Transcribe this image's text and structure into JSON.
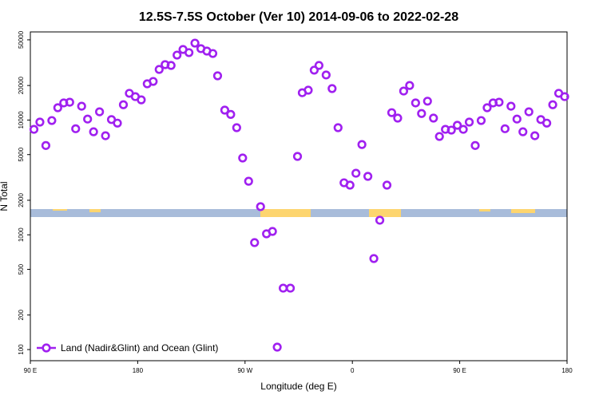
{
  "chart_data": {
    "type": "scatter",
    "title": "12.5S-7.5S October (Ver 10)   2014-09-06 to 2022-02-28",
    "xlabel": "Longitude (deg E)",
    "ylabel": "N Total",
    "ylog": true,
    "legend": "lower left",
    "xlim": [
      90,
      540
    ],
    "ylim": [
      80,
      58600
    ],
    "xticks": [
      {
        "value": 90,
        "label": "90 E"
      },
      180,
      {
        "value": 270,
        "label": "90 W"
      },
      {
        "value": 360,
        "label": "0"
      },
      {
        "value": 450,
        "label": "90 E"
      },
      {
        "value": 540,
        "label": "180"
      }
    ],
    "yticks": [
      100,
      200,
      500,
      1000,
      2000,
      5000,
      10000,
      20000,
      50000
    ],
    "series": [
      {
        "name": "Land (Nadir&Glint) and Ocean (Glint)",
        "color": "#a020f0",
        "x": [
          93,
          98,
          103,
          108,
          113,
          118,
          123,
          128,
          133,
          138,
          143,
          148,
          153,
          158,
          163,
          168,
          173,
          178,
          183,
          188,
          193,
          198,
          203,
          208,
          213,
          218,
          223,
          228,
          233,
          238,
          243,
          247,
          253,
          258,
          263,
          268,
          273,
          283,
          278,
          288,
          293,
          297,
          302,
          308,
          314,
          318,
          323,
          328,
          332,
          338,
          343,
          348,
          353,
          358,
          368,
          363,
          373,
          378,
          383,
          389,
          393,
          398,
          403,
          408,
          413,
          418,
          423,
          428,
          433,
          438,
          443,
          448,
          453,
          458,
          463,
          468,
          473,
          478,
          483,
          488,
          493,
          498,
          503,
          508,
          513,
          518,
          523,
          528,
          533,
          538
        ],
        "values": [
          8300,
          9600,
          6000,
          9900,
          12800,
          14100,
          14300,
          8400,
          13200,
          10200,
          7900,
          11800,
          7300,
          10100,
          9400,
          13600,
          17100,
          16000,
          15000,
          20700,
          21700,
          27600,
          30400,
          29900,
          36800,
          41200,
          38700,
          46800,
          41900,
          39900,
          38000,
          24300,
          12200,
          11200,
          8580,
          4670,
          2930,
          1760,
          855,
          1020,
          1070,
          105,
          343,
          343,
          4820,
          17300,
          18200,
          27200,
          29900,
          24700,
          18800,
          8580,
          2840,
          2710,
          6120,
          3440,
          3230,
          621,
          1340,
          2710,
          11600,
          10400,
          17900,
          20000,
          14100,
          11400,
          14600,
          10400,
          7190,
          8300,
          8170,
          9000,
          8300,
          9600,
          6000,
          9900,
          12800,
          14100,
          14300,
          8400,
          13200,
          10200,
          7900,
          11800,
          7300,
          10100,
          9400,
          13600,
          17100,
          16000
        ]
      }
    ]
  }
}
